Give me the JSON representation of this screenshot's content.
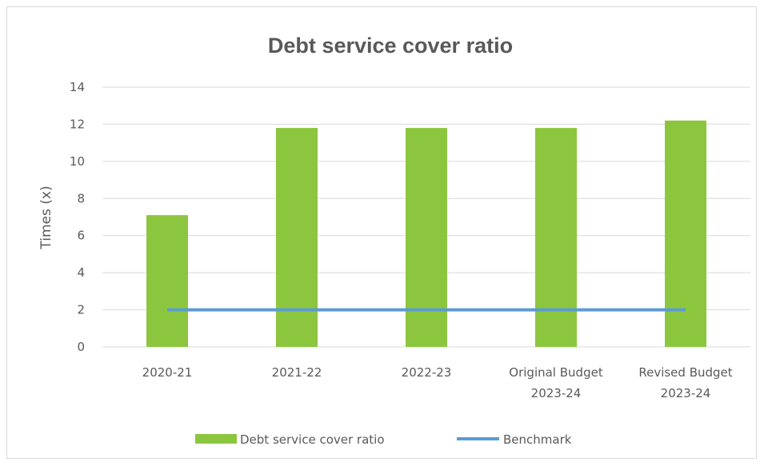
{
  "chart_data": {
    "type": "bar",
    "title": "Debt service cover ratio",
    "ylabel": "Times (x)",
    "xlabel": "",
    "ylim": [
      0,
      14
    ],
    "yticks": [
      0,
      2,
      4,
      6,
      8,
      10,
      12,
      14
    ],
    "grid": true,
    "legend_position": "bottom",
    "categories": [
      [
        "2020-21"
      ],
      [
        "2021-22"
      ],
      [
        "2022-23"
      ],
      [
        "Original Budget",
        "2023-24"
      ],
      [
        "Revised Budget",
        "2023-24"
      ]
    ],
    "series": [
      {
        "name": "Debt service cover ratio",
        "type": "bar",
        "color": "#8cc63f",
        "values": [
          7.1,
          11.8,
          11.8,
          11.8,
          12.2
        ]
      },
      {
        "name": "Benchmark",
        "type": "line",
        "color": "#5b9bd5",
        "values": [
          2,
          2,
          2,
          2,
          2
        ]
      }
    ]
  }
}
